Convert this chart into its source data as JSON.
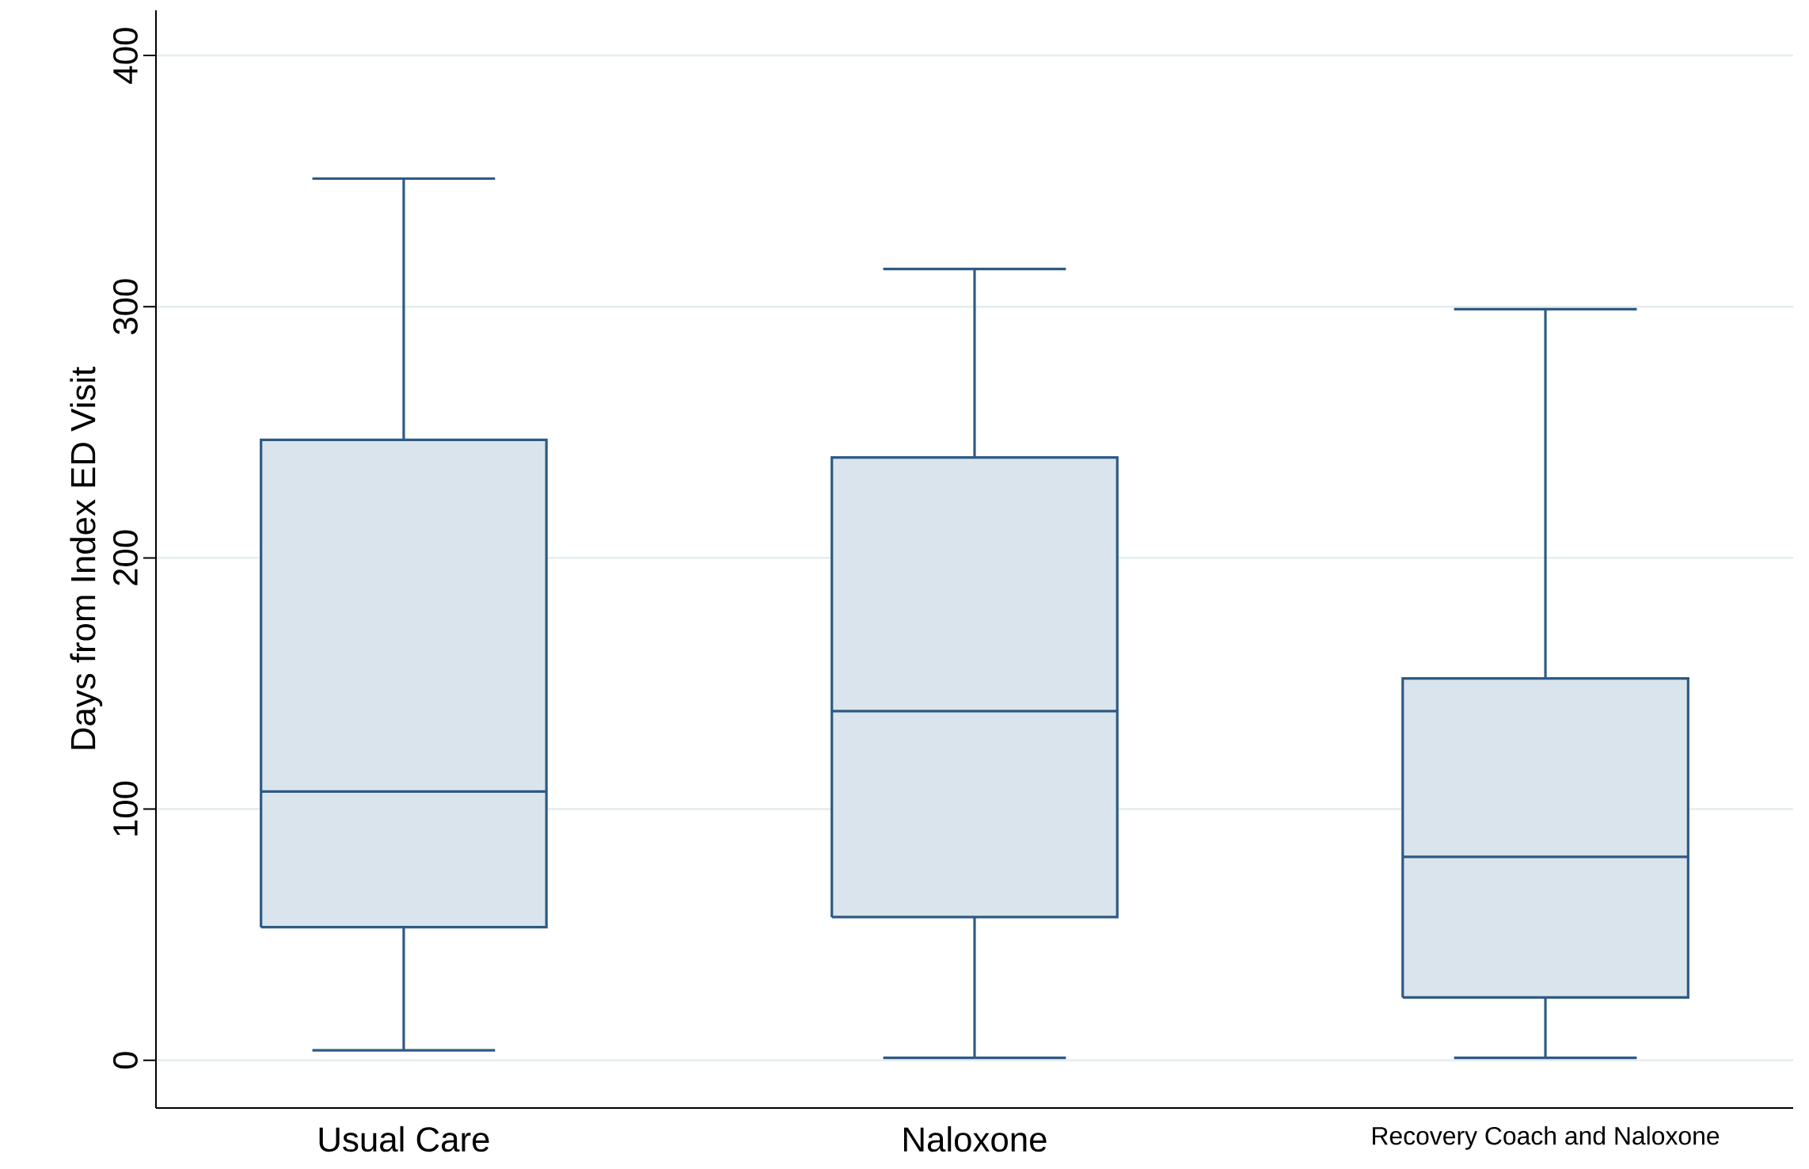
{
  "chart_data": {
    "type": "box",
    "ylabel": "Days from Index ED Visit",
    "categories": [
      "Usual Care",
      "Naloxone",
      "Recovery Coach and Naloxone"
    ],
    "boxes": [
      {
        "low": 4,
        "q1": 53,
        "median": 107,
        "q3": 247,
        "high": 351
      },
      {
        "low": 1,
        "q1": 57,
        "median": 139,
        "q3": 240,
        "high": 315
      },
      {
        "low": 1,
        "q1": 25,
        "median": 81,
        "q3": 152,
        "high": 299
      }
    ],
    "color": "#d9e4ec",
    "ylim": [
      -19,
      418
    ],
    "yticks": [
      0,
      100,
      200,
      300,
      400
    ],
    "grid": "y"
  }
}
